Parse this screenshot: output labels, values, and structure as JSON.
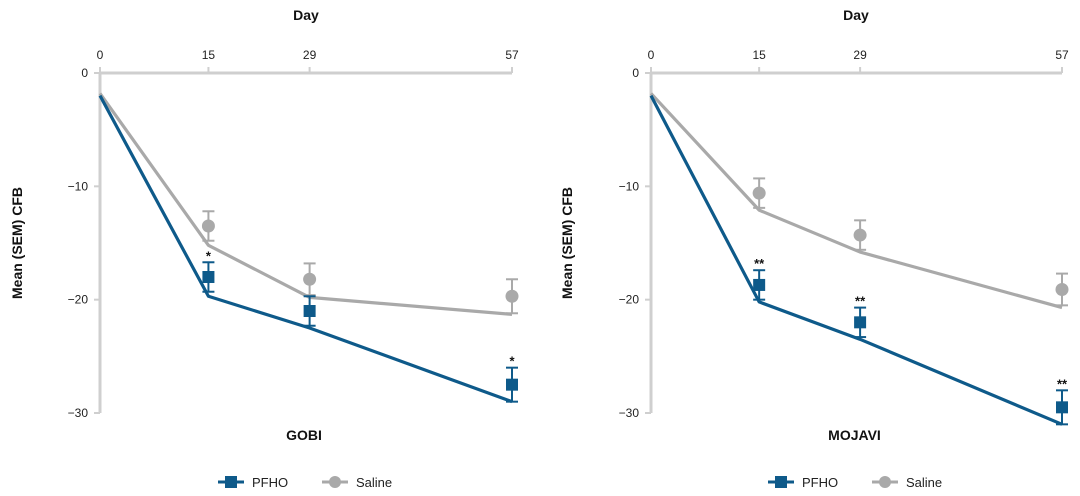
{
  "colors": {
    "pfho": "#0e5a8a",
    "saline": "#a9a9a9",
    "axis": "#cfcfcf"
  },
  "chart_data": [
    {
      "type": "line",
      "panel_title": "GOBI",
      "xlabel": "Day",
      "ylabel": "Mean (SEM) CFB",
      "x_ticks": [
        "0",
        "15",
        "29",
        "57"
      ],
      "y_ticks": [
        "0",
        "−10",
        "−20",
        "−30"
      ],
      "xlim": [
        0,
        57
      ],
      "ylim": [
        -30,
        0
      ],
      "x": [
        0,
        15,
        29,
        57
      ],
      "legend_position": "bottom",
      "series": [
        {
          "name": "PFHO",
          "marker": "square",
          "line_values": [
            -2.0,
            -19.7,
            -22.5,
            -29.0
          ],
          "point_values": [
            null,
            -18.0,
            -21.0,
            -27.5
          ],
          "sem": [
            null,
            1.3,
            1.3,
            1.5
          ],
          "significance": [
            "",
            "*",
            "",
            "*"
          ]
        },
        {
          "name": "Saline",
          "marker": "circle",
          "line_values": [
            -1.8,
            -15.2,
            -19.8,
            -21.3
          ],
          "point_values": [
            null,
            -13.5,
            -18.2,
            -19.7
          ],
          "sem": [
            null,
            1.3,
            1.4,
            1.5
          ],
          "significance": [
            "",
            "",
            "",
            ""
          ]
        }
      ]
    },
    {
      "type": "line",
      "panel_title": "MOJAVI",
      "xlabel": "Day",
      "ylabel": "Mean (SEM) CFB",
      "x_ticks": [
        "0",
        "15",
        "29",
        "57"
      ],
      "y_ticks": [
        "0",
        "−10",
        "−20",
        "−30"
      ],
      "xlim": [
        0,
        57
      ],
      "ylim": [
        -30,
        0
      ],
      "x": [
        0,
        15,
        29,
        57
      ],
      "legend_position": "bottom",
      "series": [
        {
          "name": "PFHO",
          "marker": "square",
          "line_values": [
            -2.0,
            -20.2,
            -23.5,
            -31.0
          ],
          "point_values": [
            null,
            -18.7,
            -22.0,
            -29.5
          ],
          "sem": [
            null,
            1.3,
            1.3,
            1.5
          ],
          "significance": [
            "",
            "**",
            "**",
            "**"
          ]
        },
        {
          "name": "Saline",
          "marker": "circle",
          "line_values": [
            -1.8,
            -12.1,
            -15.8,
            -20.7
          ],
          "point_values": [
            null,
            -10.6,
            -14.3,
            -19.1
          ],
          "sem": [
            null,
            1.3,
            1.3,
            1.4
          ],
          "significance": [
            "",
            "",
            "",
            ""
          ]
        }
      ]
    }
  ]
}
